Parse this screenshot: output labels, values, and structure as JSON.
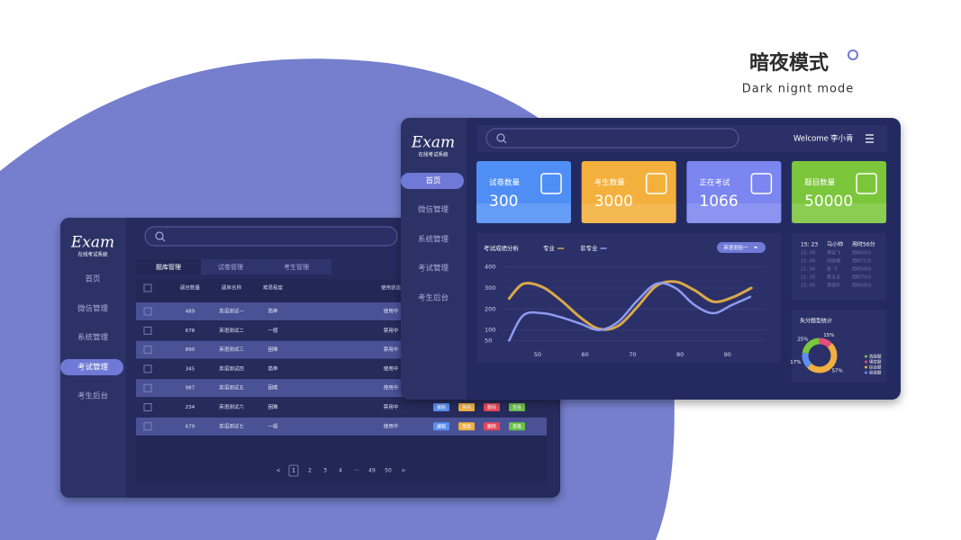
{
  "header": {
    "title": "暗夜模式",
    "subtitle": "Dark nignt mode"
  },
  "back_window": {
    "logo": "Exam",
    "logo_sub": "在线考试系统",
    "nav": [
      "首页",
      "微信管理",
      "系统管理",
      "考试管理",
      "考生后台"
    ],
    "active_nav": 3,
    "tabs": [
      "题库管理",
      "试卷管理",
      "考生管理"
    ],
    "table": {
      "columns": [
        "题目数量",
        "题库名称",
        "难易程度",
        "使用状态"
      ],
      "rows": [
        [
          489,
          "英语测试一",
          "简单",
          "使用中"
        ],
        [
          678,
          "英语测试二",
          "一般",
          "禁用中"
        ],
        [
          890,
          "英语测试三",
          "困难",
          "禁用中"
        ],
        [
          345,
          "英语测试四",
          "简单",
          "使用中"
        ],
        [
          987,
          "英语测试五",
          "困难",
          "使用中"
        ],
        [
          234,
          "英语测试六",
          "困难",
          "禁用中"
        ],
        [
          679,
          "英语测试七",
          "一般",
          "使用中"
        ]
      ],
      "actions": [
        "编辑",
        "禁用",
        "删除",
        "查看"
      ],
      "action_colors": [
        "#5b8ff0",
        "#f0b040",
        "#e5485a",
        "#6cc04a"
      ]
    },
    "pagination": [
      "<",
      "1",
      "2",
      "3",
      "4",
      "···",
      "49",
      "50",
      ">"
    ]
  },
  "front_window": {
    "logo": "Exam",
    "logo_sub": "在线考试系统",
    "nav": [
      "首页",
      "微信管理",
      "系统管理",
      "考试管理",
      "考生后台"
    ],
    "active_nav": 0,
    "welcome": "Welcome",
    "user": "李小青",
    "cards": [
      {
        "label": "试卷数量",
        "value": 300,
        "color": "#4f8ff5"
      },
      {
        "label": "考生数量",
        "value": 3000,
        "color": "#f4b03c"
      },
      {
        "label": "正在考试",
        "value": 1066,
        "color": "#7b86f0"
      },
      {
        "label": "题目数量",
        "value": 50000,
        "color": "#7cc63c"
      }
    ],
    "schedule": [
      [
        "15: 23",
        "马小帅",
        "用时56分"
      ],
      [
        "15: 09",
        "李晓飞",
        "用时69分"
      ],
      [
        "15: 04",
        "田晓梅",
        "用时71分"
      ],
      [
        "11: 34",
        "张  飞",
        "用时58分"
      ],
      [
        "11: 30",
        "黄玉玉",
        "用时79分"
      ],
      [
        "15: 00",
        "李国华",
        "用时58分"
      ]
    ]
  },
  "chart_data": [
    {
      "type": "line",
      "title": "考试成绩分析",
      "dropdown": "英语测验一",
      "x": [
        44,
        47,
        51,
        55,
        59,
        63,
        67,
        71,
        75,
        79,
        83,
        87,
        91,
        95
      ],
      "series": [
        {
          "name": "专业",
          "color": "#d9a84a",
          "values": [
            250,
            320,
            305,
            240,
            160,
            105,
            120,
            210,
            310,
            330,
            290,
            235,
            255,
            300
          ]
        },
        {
          "name": "非专业",
          "color": "#8e9cf2",
          "values": [
            50,
            170,
            180,
            160,
            130,
            100,
            140,
            240,
            320,
            300,
            220,
            180,
            220,
            260
          ]
        }
      ],
      "xlim": [
        43,
        98
      ],
      "xticks": [
        50,
        60,
        70,
        80,
        90
      ],
      "ylim": [
        0,
        420
      ],
      "yticks": [
        50,
        100,
        200,
        300,
        400
      ],
      "grid": true
    },
    {
      "type": "pie",
      "title": "失分题型统计",
      "categories": [
        "选择题",
        "填空题",
        "综合题",
        "阅读题"
      ],
      "values": [
        25,
        15,
        57,
        17
      ],
      "value_labels": [
        "25%",
        "15%",
        "57%",
        "17%"
      ],
      "colors": [
        "#7cc63c",
        "#e0507a",
        "#f0b040",
        "#5b8ff0"
      ]
    }
  ]
}
